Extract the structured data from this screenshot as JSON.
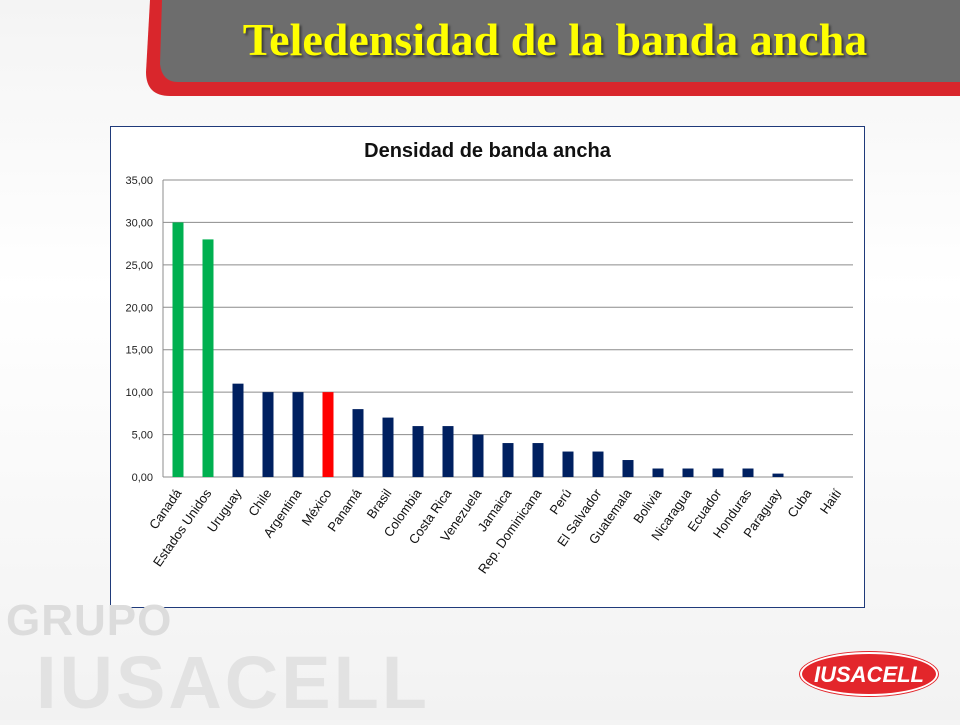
{
  "slide": {
    "title": "Teledensidad de la banda ancha",
    "watermark_line1": "GRUPO",
    "watermark_line2": "IUSACELL",
    "logo_text": "IUSACELL"
  },
  "colors": {
    "green": "#00b050",
    "navy": "#002060",
    "red": "#ff0000",
    "title_yellow": "#ffff00",
    "header_gray": "#6d6d6d",
    "accent_red": "#d9262c"
  },
  "chart_data": {
    "type": "bar",
    "title": "Densidad  de banda ancha",
    "xlabel": "",
    "ylabel": "",
    "ylim": [
      0,
      35
    ],
    "yticks": [
      "0,00",
      "5,00",
      "10,00",
      "15,00",
      "20,00",
      "25,00",
      "30,00",
      "35,00"
    ],
    "grid": true,
    "legend": "none",
    "categories": [
      "Canadá",
      "Estados Unidos",
      "Uruguay",
      "Chile",
      "Argentina",
      "México",
      "Panamá",
      "Brasil",
      "Colombia",
      "Costa Rica",
      "Venezuela",
      "Jamaica",
      "Rep. Dominicana",
      "Perú",
      "El Salvador",
      "Guatemala",
      "Bolivia",
      "Nicaragua",
      "Ecuador",
      "Honduras",
      "Paraguay",
      "Cuba",
      "Haití"
    ],
    "values": [
      30,
      28,
      11,
      10,
      10,
      10,
      8,
      7,
      6,
      6,
      5,
      4,
      4,
      3,
      3,
      2,
      1,
      1,
      1,
      1,
      0.4,
      0,
      0
    ],
    "bar_colors": [
      "green",
      "green",
      "navy",
      "navy",
      "navy",
      "red",
      "navy",
      "navy",
      "navy",
      "navy",
      "navy",
      "navy",
      "navy",
      "navy",
      "navy",
      "navy",
      "navy",
      "navy",
      "navy",
      "navy",
      "navy",
      "navy",
      "navy"
    ]
  }
}
